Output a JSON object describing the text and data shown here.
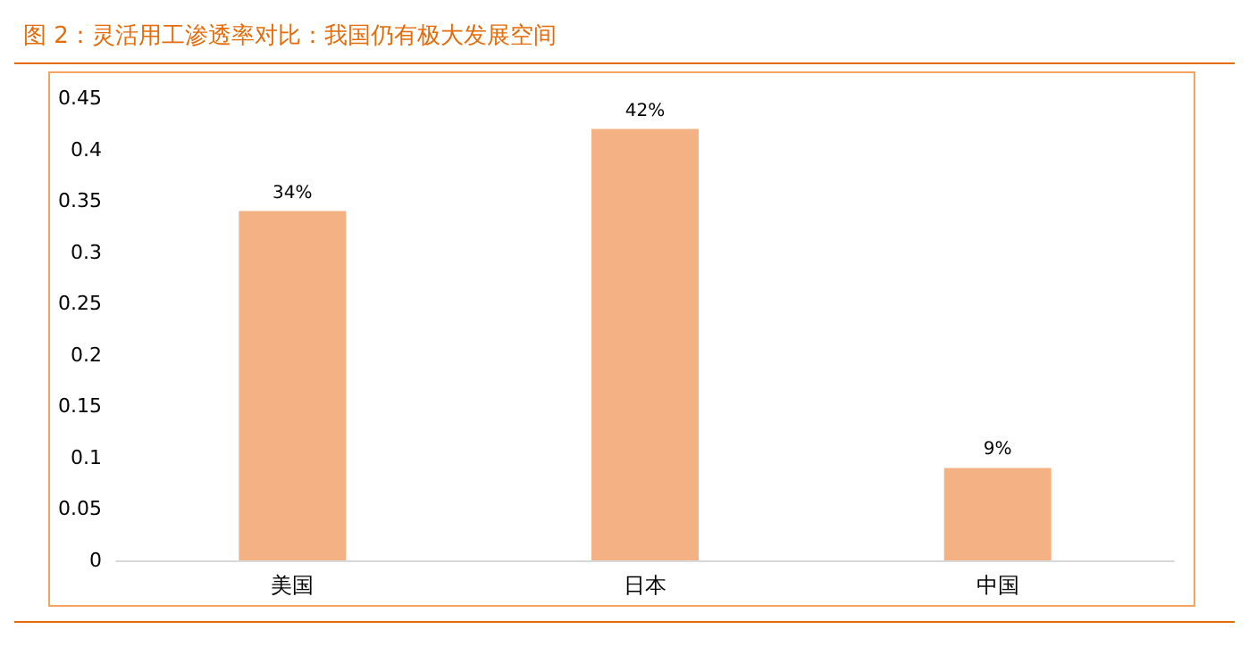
{
  "chart_data": {
    "type": "bar",
    "title": "图 2：灵活用工渗透率对比：我国仍有极大发展空间",
    "categories": [
      "美国",
      "日本",
      "中国"
    ],
    "values": [
      0.34,
      0.42,
      0.09
    ],
    "value_labels": [
      "34%",
      "42%",
      "9%"
    ],
    "color": "#f4b183",
    "ylim": [
      0,
      0.45
    ],
    "yticks": [
      0,
      0.05,
      0.1,
      0.15,
      0.2,
      0.25,
      0.3,
      0.35,
      0.4,
      0.45
    ],
    "grid": false
  }
}
